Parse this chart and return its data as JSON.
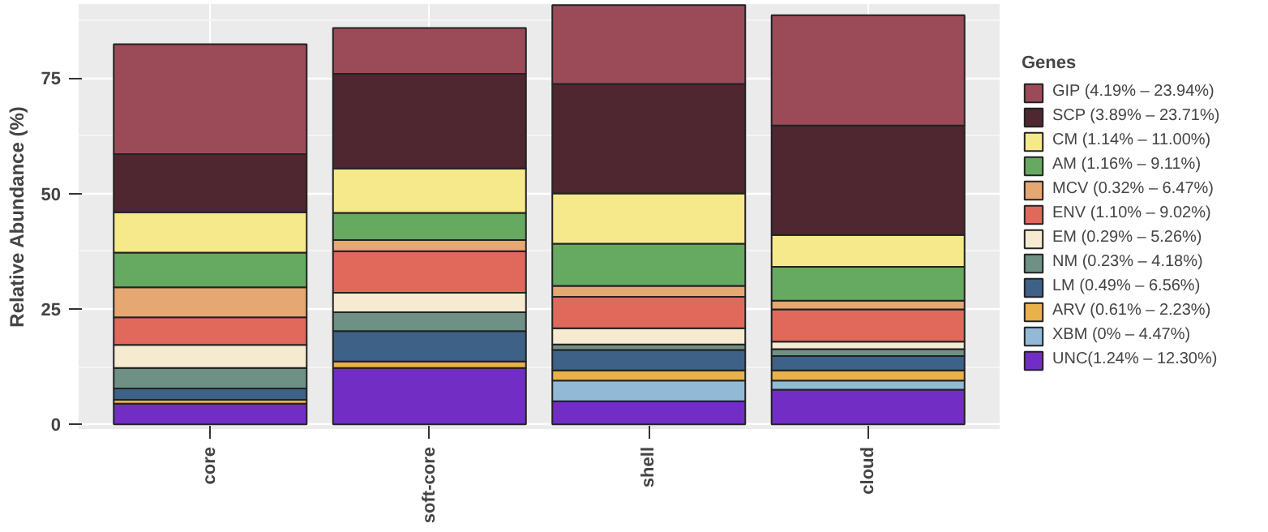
{
  "chart_data": {
    "type": "bar",
    "stacked": true,
    "ylabel": "Relative Abundance (%)",
    "legend_title": "Genes",
    "categories": [
      "core",
      "soft-core",
      "shell",
      "cloud"
    ],
    "series": [
      {
        "name": "UNC(1.24% – 12.30%)",
        "color": "#722ec4",
        "values": [
          4.5,
          12.2,
          5.0,
          7.5
        ]
      },
      {
        "name": "XBM (0% – 4.47%)",
        "color": "#92bad6",
        "values": [
          0,
          0,
          4.5,
          2.0
        ]
      },
      {
        "name": "ARV (0.61% – 2.23%)",
        "color": "#e9b14a",
        "values": [
          0.8,
          1.4,
          2.2,
          2.2
        ]
      },
      {
        "name": "LM (0.49% – 6.56%)",
        "color": "#3d6187",
        "values": [
          2.5,
          6.6,
          4.4,
          3.1
        ]
      },
      {
        "name": "NM (0.23% – 4.18%)",
        "color": "#6e9085",
        "values": [
          4.4,
          4.1,
          1.2,
          1.5
        ]
      },
      {
        "name": "EM (0.29% – 5.26%)",
        "color": "#f6ead0",
        "values": [
          5.0,
          4.2,
          3.5,
          1.6
        ]
      },
      {
        "name": "ENV (1.10% – 9.02%)",
        "color": "#e0695c",
        "values": [
          6.0,
          9.0,
          6.8,
          7.0
        ]
      },
      {
        "name": "MCV (0.32% – 6.47%)",
        "color": "#e5a872",
        "values": [
          6.5,
          2.4,
          2.4,
          1.9
        ]
      },
      {
        "name": "AM (1.16% – 9.11%)",
        "color": "#66a961",
        "values": [
          7.5,
          5.9,
          9.1,
          7.3
        ]
      },
      {
        "name": "CM (1.14% – 11.00%)",
        "color": "#f5e98b",
        "values": [
          8.7,
          9.6,
          10.9,
          6.9
        ]
      },
      {
        "name": "SCP (3.89% – 23.71%)",
        "color": "#4f2730",
        "values": [
          12.6,
          20.5,
          23.7,
          23.7
        ]
      },
      {
        "name": "GIP (4.19% – 23.94%)",
        "color": "#9b4b58",
        "values": [
          23.8,
          9.9,
          17.1,
          23.9
        ]
      }
    ],
    "ylim": [
      -1,
      91
    ],
    "yticks": [
      0,
      25,
      50,
      75
    ],
    "grid": true,
    "legend": "right"
  }
}
